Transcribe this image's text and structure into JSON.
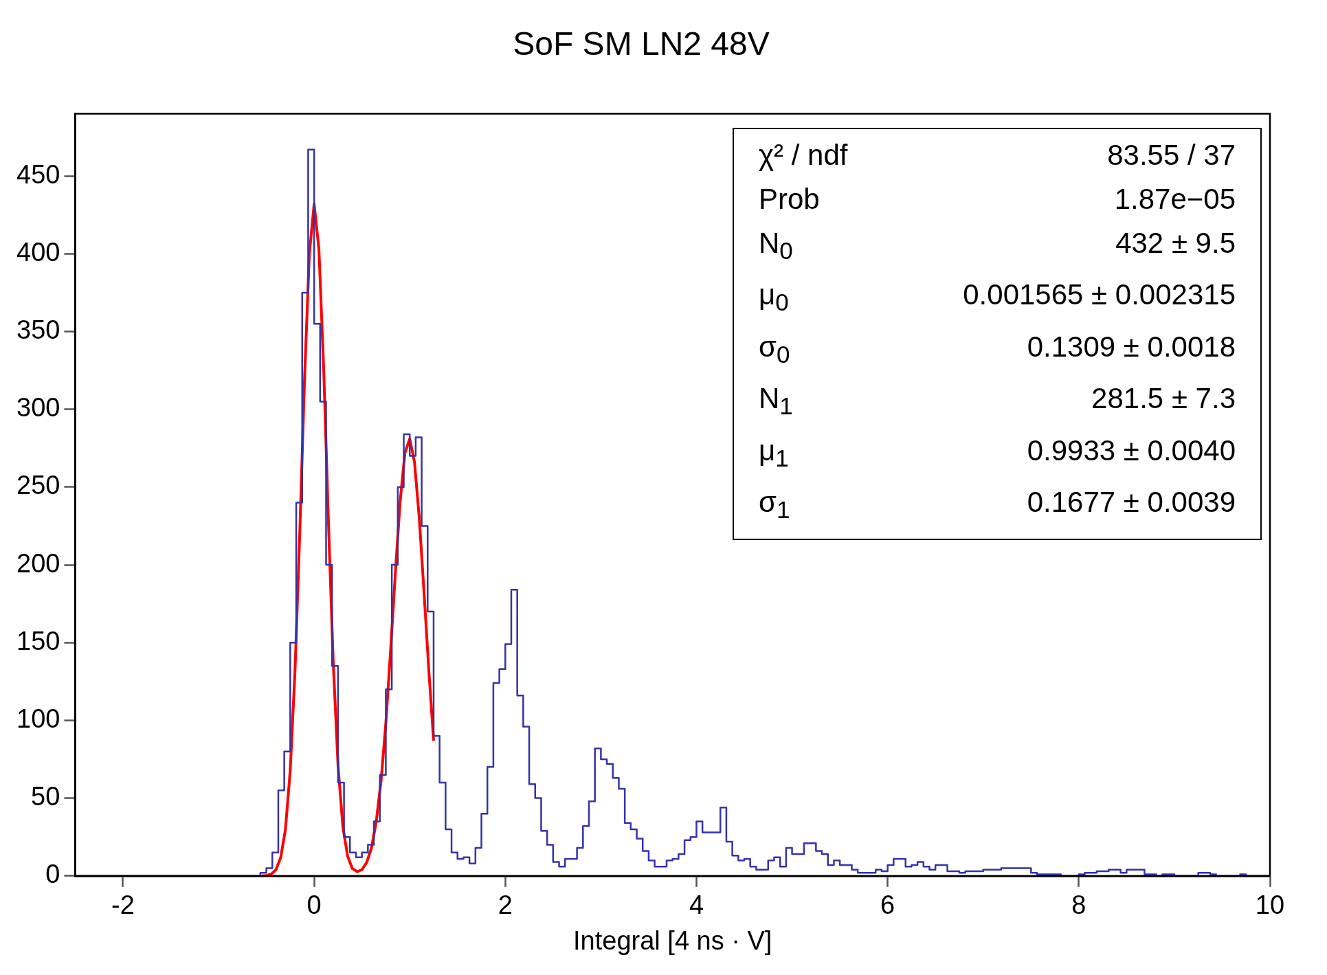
{
  "chart_data": {
    "type": "histogram",
    "title": "SoF SM LN2 48V",
    "xlabel": "Integral [4 ns · V]",
    "xlim": [
      -2.5,
      10
    ],
    "xticks": [
      -2,
      0,
      2,
      4,
      6,
      8,
      10
    ],
    "ylim": [
      0,
      490
    ],
    "yticks": [
      0,
      50,
      100,
      150,
      200,
      250,
      300,
      350,
      400,
      450
    ],
    "annotations": [
      "χ² / ndf",
      "83.55 / 37",
      "Prob",
      "1.87e−05",
      "N$_{0}$",
      "432 ± 9.5",
      "μ$_{0}$",
      "0.001565 ± 0.002315",
      "σ$_{0}$",
      "0.1309 ± 0.0018",
      "N$_{1}$",
      "281.5 ± 7.3",
      "μ$_{1}$",
      "0.9933 ± 0.0040",
      "σ$_{1}$",
      "0.1677 ± 0.0039"
    ],
    "series": [
      {
        "color": "#3333aa",
        "bins": [
          -2.5,
          -2.4375,
          -2.375,
          -2.3125,
          -2.25,
          -2.1875,
          -2.125,
          -2.0625,
          -2,
          -1.9375,
          -1.875,
          -1.8125,
          -1.75,
          -1.6875,
          -1.625,
          -1.5625,
          -1.5,
          -1.4375,
          -1.375,
          -1.3125,
          -1.25,
          -1.1875,
          -1.125,
          -1.0625,
          -1,
          -0.9375,
          -0.875,
          -0.8125,
          -0.75,
          -0.6875,
          -0.625,
          -0.5625,
          -0.5,
          -0.4375,
          -0.375,
          -0.3125,
          -0.25,
          -0.1875,
          -0.125,
          -0.0625,
          0,
          0.0625,
          0.125,
          0.1875,
          0.25,
          0.3125,
          0.375,
          0.4375,
          0.5,
          0.5625,
          0.625,
          0.6875,
          0.75,
          0.8125,
          0.875,
          0.9375,
          1,
          1.0625,
          1.125,
          1.1875,
          1.25,
          1.3125,
          1.375,
          1.4375,
          1.5,
          1.5625,
          1.625,
          1.6875,
          1.75,
          1.8125,
          1.875,
          1.9375,
          2,
          2.0625,
          2.125,
          2.1875,
          2.25,
          2.3125,
          2.375,
          2.4375,
          2.5,
          2.5625,
          2.625,
          2.6875,
          2.75,
          2.8125,
          2.875,
          2.9375,
          3,
          3.0625,
          3.125,
          3.1875,
          3.25,
          3.3125,
          3.375,
          3.4375,
          3.5,
          3.5625,
          3.625,
          3.6875,
          3.75,
          3.8125,
          3.875,
          3.9375,
          4,
          4.0625,
          4.125,
          4.1875,
          4.25,
          4.3125,
          4.375,
          4.4375,
          4.5,
          4.5625,
          4.625,
          4.6875,
          4.75,
          4.8125,
          4.875,
          4.9375,
          5,
          5.0625,
          5.125,
          5.1875,
          5.25,
          5.3125,
          5.375,
          5.4375,
          5.5,
          5.5625,
          5.625,
          5.6875,
          5.75,
          5.8125,
          5.875,
          5.9375,
          6,
          6.0625,
          6.125,
          6.1875,
          6.25,
          6.3125,
          6.375,
          6.4375,
          6.5,
          6.5625,
          6.625,
          6.6875,
          6.75,
          6.8125,
          6.875,
          6.9375,
          7,
          7.0625,
          7.125,
          7.1875,
          7.25,
          7.3125,
          7.375,
          7.4375,
          7.5,
          7.5625,
          7.625,
          7.6875,
          7.75,
          7.8125,
          7.875,
          7.9375,
          8,
          8.0625,
          8.125,
          8.1875,
          8.25,
          8.3125,
          8.375,
          8.4375,
          8.5,
          8.5625,
          8.625,
          8.6875,
          8.75,
          8.8125,
          8.875,
          8.9375,
          9,
          9.0625,
          9.125,
          9.1875,
          9.25,
          9.3125,
          9.375,
          9.4375,
          9.5,
          9.5625,
          9.625,
          9.6875,
          9.75,
          9.8125,
          9.875,
          9.9375,
          10
        ],
        "values": [
          0,
          0,
          0,
          0,
          0,
          0,
          0,
          0,
          0,
          0,
          0,
          0,
          0,
          0,
          0,
          0,
          0,
          0,
          0,
          0,
          0,
          0,
          0,
          0,
          0,
          0,
          0,
          0,
          0,
          0,
          0,
          2,
          5,
          15,
          55,
          80,
          150,
          240,
          375,
          467,
          355,
          305,
          200,
          135,
          60,
          25,
          15,
          12,
          15,
          20,
          35,
          65,
          120,
          200,
          250,
          284,
          270,
          282,
          225,
          170,
          90,
          60,
          30,
          15,
          11,
          12,
          8,
          18,
          40,
          70,
          124,
          133,
          149,
          184,
          116,
          96,
          59,
          50,
          29,
          20,
          9,
          6,
          11,
          11,
          18,
          32,
          48,
          82,
          75,
          72,
          63,
          56,
          34,
          30,
          24,
          16,
          10,
          6,
          6,
          10,
          11,
          14,
          23,
          25,
          35,
          28,
          28,
          28,
          44,
          22,
          13,
          10,
          11,
          6,
          4,
          4,
          10,
          12,
          6,
          18,
          14,
          14,
          21,
          21,
          16,
          14,
          7,
          10,
          7,
          7,
          4,
          2,
          2,
          2,
          4,
          3,
          7,
          11,
          11,
          6,
          7,
          9,
          6,
          4,
          7,
          7,
          3,
          3,
          2,
          3,
          3,
          3,
          4,
          4,
          4,
          5,
          5,
          5,
          5,
          5,
          2,
          1,
          1,
          1,
          1,
          0,
          0,
          0,
          1,
          2,
          2,
          3,
          3,
          4,
          4,
          2,
          4,
          4,
          4,
          1,
          1,
          0,
          1,
          1,
          0,
          0,
          0,
          0,
          2,
          2,
          1,
          0,
          0,
          0,
          0,
          1,
          0,
          0,
          0,
          0
        ]
      },
      {
        "type": "line",
        "color": "#ff0000",
        "x": [
          -0.55,
          -0.5,
          -0.45,
          -0.4,
          -0.35,
          -0.3,
          -0.25,
          -0.2,
          -0.15,
          -0.1,
          -0.05,
          0,
          0.05,
          0.1,
          0.15,
          0.2,
          0.25,
          0.3,
          0.35,
          0.4,
          0.45,
          0.5,
          0.55,
          0.6,
          0.65,
          0.7,
          0.75,
          0.8,
          0.85,
          0.9,
          0.95,
          1,
          1.05,
          1.1,
          1.15,
          1.2,
          1.25
        ],
        "values": [
          0,
          0.3,
          1.1,
          3.9,
          11.7,
          30,
          68,
          132,
          221,
          320,
          400,
          432,
          403,
          326,
          227,
          137,
          71,
          32,
          12.7,
          4.7,
          2.7,
          4,
          8.7,
          18,
          35,
          61,
          98,
          145,
          195,
          241,
          272,
          281,
          266,
          230,
          182,
          132,
          87
        ]
      }
    ]
  }
}
